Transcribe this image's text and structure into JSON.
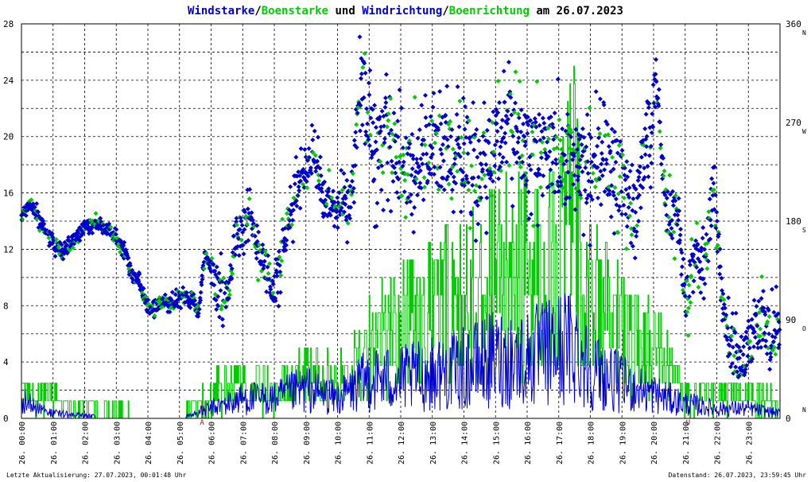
{
  "chart_data": {
    "type": "line",
    "title_parts": [
      "Windstarke",
      "/",
      "Boenstarke",
      " und ",
      "Windrichtung",
      "/",
      "Boenrichtung",
      " am 26.07.2023"
    ],
    "title_colors": [
      "#0000cc",
      "#000000",
      "#00cc00",
      "#000000",
      "#0000cc",
      "#000000",
      "#00cc00",
      "#000000"
    ],
    "left_axis": {
      "ticks": [
        "28",
        "24",
        "20",
        "16",
        "12",
        "8",
        "4",
        "0"
      ],
      "ylim": [
        0,
        28
      ]
    },
    "right_axis": {
      "ticks": [
        "360",
        "270",
        "180",
        "90",
        "0"
      ],
      "ylim": [
        0,
        360
      ]
    },
    "compass_labels": [
      "N",
      "W",
      "S",
      "O",
      "N"
    ],
    "x_ticks": [
      "26. 00:00",
      "26. 01:00",
      "26. 02:00",
      "26. 03:00",
      "26. 04:00",
      "26. 05:00",
      "26. 06:00",
      "26. 07:00",
      "26. 08:00",
      "26. 09:00",
      "26. 10:00",
      "26. 11:00",
      "26. 12:00",
      "26. 13:00",
      "26. 14:00",
      "26. 15:00",
      "26. 16:00",
      "26. 17:00",
      "26. 18:00",
      "26. 19:00",
      "26. 20:00",
      "26. 21:00",
      "26. 22:00",
      "26. 23:00"
    ],
    "xlim_hours": [
      0,
      24
    ],
    "markers": [
      {
        "label": "A",
        "hour": 5.72
      },
      {
        "label": "U",
        "hour": 21.1
      }
    ],
    "grid": true,
    "series": [
      {
        "name": "Windstarke",
        "color": "#0000cc"
      },
      {
        "name": "Boenstarke",
        "color": "#00cc00"
      },
      {
        "name": "Windrichtung",
        "color": "#0000cc"
      },
      {
        "name": "Boenrichtung",
        "color": "#00cc00"
      }
    ],
    "direction_trend": [
      [
        0.0,
        185
      ],
      [
        0.3,
        195
      ],
      [
        0.6,
        180
      ],
      [
        1.0,
        160
      ],
      [
        1.3,
        150
      ],
      [
        1.7,
        165
      ],
      [
        2.0,
        175
      ],
      [
        2.5,
        178
      ],
      [
        3.0,
        165
      ],
      [
        3.3,
        150
      ],
      [
        3.5,
        130
      ],
      [
        3.7,
        125
      ],
      [
        4.0,
        100
      ],
      [
        4.5,
        105
      ],
      [
        5.0,
        110
      ],
      [
        5.4,
        110
      ],
      [
        5.6,
        95
      ],
      [
        5.8,
        150
      ],
      [
        6.2,
        120
      ],
      [
        6.5,
        110
      ],
      [
        6.8,
        170
      ],
      [
        7.2,
        180
      ],
      [
        7.6,
        150
      ],
      [
        8.0,
        115
      ],
      [
        8.4,
        170
      ],
      [
        8.8,
        220
      ],
      [
        9.2,
        240
      ],
      [
        9.6,
        200
      ],
      [
        10.0,
        190
      ],
      [
        10.4,
        195
      ],
      [
        10.8,
        310
      ],
      [
        11.2,
        235
      ],
      [
        11.6,
        265
      ],
      [
        12.0,
        230
      ],
      [
        12.5,
        225
      ],
      [
        13.0,
        250
      ],
      [
        13.5,
        240
      ],
      [
        14.0,
        245
      ],
      [
        14.5,
        225
      ],
      [
        15.0,
        250
      ],
      [
        15.5,
        265
      ],
      [
        16.0,
        240
      ],
      [
        16.5,
        245
      ],
      [
        17.0,
        240
      ],
      [
        17.5,
        230
      ],
      [
        18.0,
        225
      ],
      [
        18.5,
        240
      ],
      [
        19.0,
        220
      ],
      [
        19.4,
        175
      ],
      [
        19.8,
        260
      ],
      [
        20.1,
        310
      ],
      [
        20.4,
        190
      ],
      [
        20.8,
        180
      ],
      [
        21.0,
        100
      ],
      [
        21.3,
        150
      ],
      [
        21.6,
        130
      ],
      [
        21.9,
        210
      ],
      [
        22.2,
        95
      ],
      [
        22.5,
        60
      ],
      [
        22.8,
        55
      ],
      [
        23.1,
        75
      ],
      [
        23.4,
        90
      ],
      [
        23.7,
        75
      ],
      [
        24.0,
        80
      ]
    ],
    "speed_envelope": [
      [
        0.0,
        2
      ],
      [
        0.5,
        1
      ],
      [
        1.0,
        0.5
      ],
      [
        2.0,
        0.3
      ],
      [
        3.0,
        0
      ],
      [
        4.0,
        0
      ],
      [
        5.0,
        0
      ],
      [
        6.0,
        1
      ],
      [
        7.0,
        2
      ],
      [
        8.0,
        2
      ],
      [
        9.0,
        3
      ],
      [
        10.0,
        2
      ],
      [
        11.0,
        4
      ],
      [
        12.0,
        4
      ],
      [
        13.0,
        4.5
      ],
      [
        14.0,
        5
      ],
      [
        15.0,
        6
      ],
      [
        16.0,
        6
      ],
      [
        17.0,
        7
      ],
      [
        17.5,
        7.5
      ],
      [
        18.0,
        5
      ],
      [
        19.0,
        3.5
      ],
      [
        20.0,
        2.5
      ],
      [
        21.0,
        1.5
      ],
      [
        22.0,
        1
      ],
      [
        23.0,
        1
      ],
      [
        24.0,
        0.5
      ]
    ],
    "gust_envelope": [
      [
        0.0,
        3
      ],
      [
        1.0,
        2
      ],
      [
        2.0,
        1
      ],
      [
        3.0,
        1
      ],
      [
        4.0,
        0
      ],
      [
        5.0,
        0
      ],
      [
        6.0,
        3
      ],
      [
        7.0,
        4
      ],
      [
        8.0,
        3
      ],
      [
        9.0,
        5
      ],
      [
        10.0,
        4
      ],
      [
        11.0,
        9
      ],
      [
        12.0,
        11
      ],
      [
        13.0,
        13
      ],
      [
        14.0,
        14
      ],
      [
        15.0,
        16
      ],
      [
        16.0,
        17
      ],
      [
        17.0,
        19
      ],
      [
        17.5,
        25
      ],
      [
        18.0,
        14
      ],
      [
        19.0,
        10
      ],
      [
        20.0,
        8
      ],
      [
        21.0,
        3
      ],
      [
        22.0,
        3
      ],
      [
        23.0,
        3
      ],
      [
        24.0,
        2
      ]
    ],
    "footer_left": "Letzte Aktualisierung: 27.07.2023, 00:01:48 Uhr",
    "footer_right": "Datenstand: 26.07.2023, 23:59:45 Uhr"
  }
}
